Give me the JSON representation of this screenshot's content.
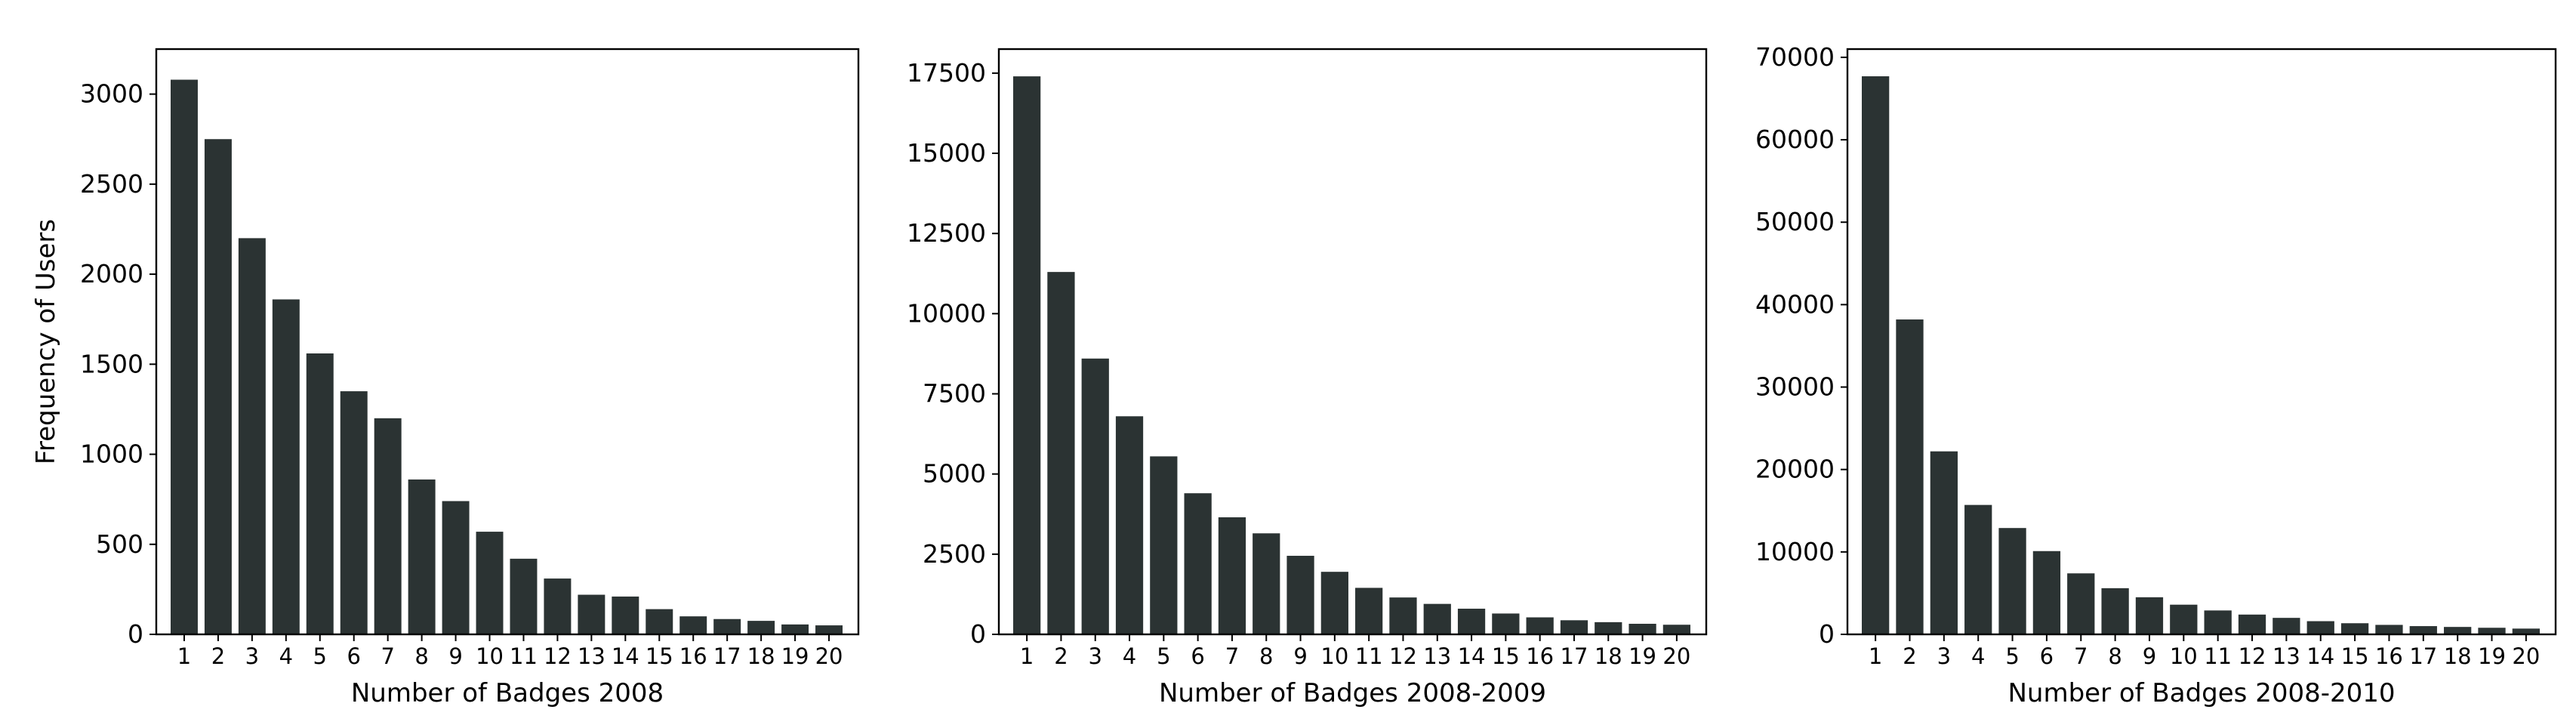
{
  "chart_data": [
    {
      "type": "bar",
      "categories": [
        "1",
        "2",
        "3",
        "4",
        "5",
        "6",
        "7",
        "8",
        "9",
        "10",
        "11",
        "12",
        "13",
        "14",
        "15",
        "16",
        "17",
        "18",
        "19",
        "20"
      ],
      "values": [
        3080,
        2750,
        2200,
        1860,
        1560,
        1350,
        1200,
        860,
        740,
        570,
        420,
        310,
        220,
        210,
        140,
        100,
        85,
        75,
        55,
        50
      ],
      "title": "",
      "xlabel": "Number of Badges 2008",
      "ylabel": "Frequency of Users",
      "ylim": [
        0,
        3250
      ],
      "yticks": [
        0,
        500,
        1000,
        1500,
        2000,
        2500,
        3000
      ],
      "bar_color": "#2b3333",
      "grid": false
    },
    {
      "type": "bar",
      "categories": [
        "1",
        "2",
        "3",
        "4",
        "5",
        "6",
        "7",
        "8",
        "9",
        "10",
        "11",
        "12",
        "13",
        "14",
        "15",
        "16",
        "17",
        "18",
        "19",
        "20"
      ],
      "values": [
        17400,
        11300,
        8600,
        6800,
        5550,
        4400,
        3650,
        3150,
        2450,
        1950,
        1450,
        1150,
        950,
        800,
        650,
        530,
        440,
        380,
        330,
        300
      ],
      "title": "",
      "xlabel": "Number of Badges 2008-2009",
      "ylabel": "",
      "ylim": [
        0,
        18250
      ],
      "yticks": [
        0,
        2500,
        5000,
        7500,
        10000,
        12500,
        15000,
        17500
      ],
      "bar_color": "#2b3333",
      "grid": false
    },
    {
      "type": "bar",
      "categories": [
        "1",
        "2",
        "3",
        "4",
        "5",
        "6",
        "7",
        "8",
        "9",
        "10",
        "11",
        "12",
        "13",
        "14",
        "15",
        "16",
        "17",
        "18",
        "19",
        "20"
      ],
      "values": [
        67700,
        38200,
        22200,
        15700,
        12900,
        10100,
        7400,
        5600,
        4500,
        3600,
        2900,
        2400,
        2000,
        1600,
        1350,
        1150,
        1000,
        900,
        800,
        700
      ],
      "title": "",
      "xlabel": "Number of Badges 2008-2010",
      "ylabel": "",
      "ylim": [
        0,
        71000
      ],
      "yticks": [
        0,
        10000,
        20000,
        30000,
        40000,
        50000,
        60000,
        70000
      ],
      "bar_color": "#2b3333",
      "grid": false
    }
  ]
}
